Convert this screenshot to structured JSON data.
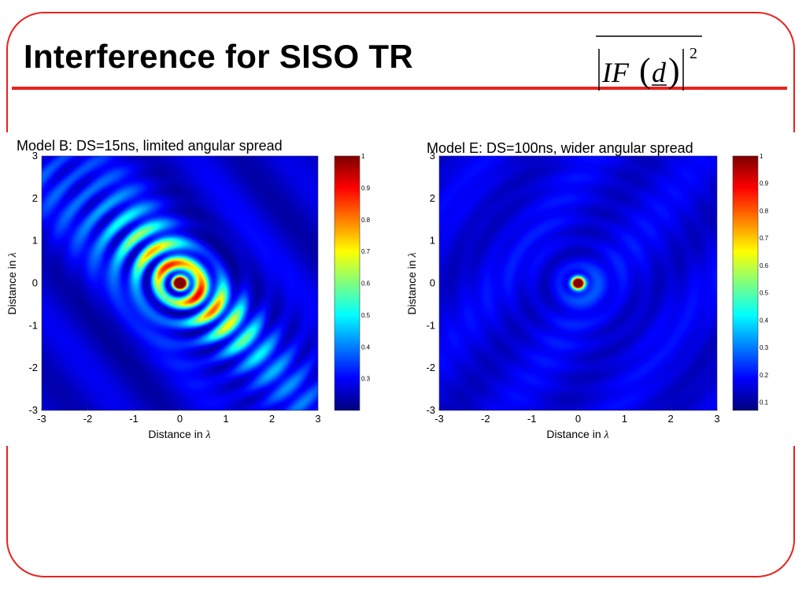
{
  "slide": {
    "title": "Interference for SISO TR",
    "formula": {
      "base": "IF",
      "arg": "d",
      "exponent": "2"
    }
  },
  "colors": {
    "accent": "#e8231c",
    "colormap": "jet"
  },
  "chart_data": [
    {
      "type": "heatmap",
      "title": "Model B: DS=15ns, limited angular spread",
      "xlabel_prefix": "Distance in",
      "ylabel_prefix": "Distance in",
      "axis_symbol": "λ",
      "xlim": [
        -3,
        3
      ],
      "ylim": [
        -3,
        3
      ],
      "xticks": [
        "-3",
        "-2",
        "-1",
        "0",
        "1",
        "2",
        "3"
      ],
      "yticks": [
        "3",
        "2",
        "1",
        "0",
        "-1",
        "-2",
        "-3"
      ],
      "colorbar_ticks": [
        "1",
        "0.9",
        "0.8",
        "0.7",
        "0.6",
        "0.5",
        "0.4",
        "0.3"
      ],
      "clim": [
        0.2,
        1.0
      ],
      "peak": {
        "x": 0,
        "y": 0,
        "value": 1.0
      },
      "pattern": "elongated lobes along diagonal from upper-left to lower-right, background ~0.25-0.4"
    },
    {
      "type": "heatmap",
      "title": "Model E: DS=100ns, wider angular spread",
      "xlabel_prefix": "Distance in",
      "ylabel_prefix": "Distance in",
      "axis_symbol": "λ",
      "xlim": [
        -3,
        3
      ],
      "ylim": [
        -3,
        3
      ],
      "xticks": [
        "-3",
        "-2",
        "-1",
        "0",
        "1",
        "2",
        "3"
      ],
      "yticks": [
        "3",
        "2",
        "1",
        "0",
        "-1",
        "-2",
        "-3"
      ],
      "colorbar_ticks": [
        "1",
        "0.9",
        "0.8",
        "0.7",
        "0.6",
        "0.5",
        "0.4",
        "0.3",
        "0.2",
        "0.1"
      ],
      "clim": [
        0.07,
        1.0
      ],
      "peak": {
        "x": 0,
        "y": 0,
        "value": 1.0
      },
      "pattern": "isotropic focal spot with faint concentric rings, background ~0.1-0.2"
    }
  ]
}
